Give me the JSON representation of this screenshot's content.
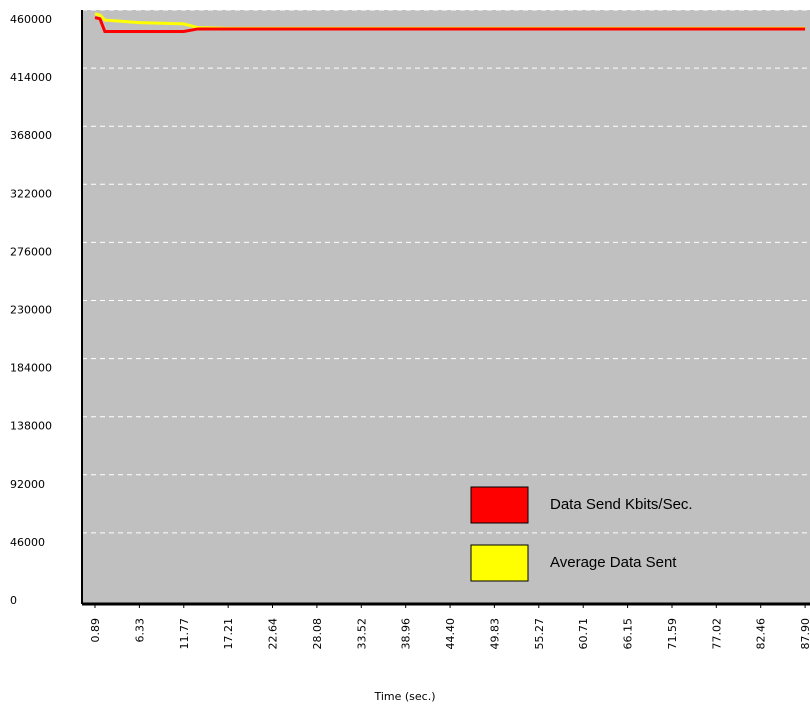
{
  "chart_data": {
    "type": "line",
    "x_label": "Time (sec.)",
    "x": [
      0.89,
      1.5,
      2.1,
      6.33,
      11.77,
      13.5,
      17.21,
      87.9
    ],
    "series": [
      {
        "name": "Data Send Kbits/Sec.",
        "color": "#ff0000",
        "values": [
          454000,
          453000,
          443000,
          443000,
          443000,
          445000,
          445000,
          445000
        ]
      },
      {
        "name": "Average Data Sent",
        "color": "#ffff00",
        "values": [
          457000,
          456000,
          452000,
          450000,
          449000,
          446000,
          445500,
          445500
        ]
      }
    ],
    "xlim": [
      -0.7,
      88.5
    ],
    "xticks": [
      0.89,
      6.33,
      11.77,
      17.21,
      22.64,
      28.08,
      33.52,
      38.96,
      {
        "value": 44.4,
        "label": "44.40"
      },
      49.83,
      55.27,
      60.71,
      66.15,
      71.59,
      77.02,
      82.46,
      {
        "value": 87.9,
        "label": "87.90"
      }
    ],
    "ylim": [
      -10300,
      460000
    ],
    "yticks": [
      0,
      46000,
      92000,
      138000,
      184000,
      230000,
      276000,
      322000,
      368000,
      414000,
      460000
    ],
    "grid": true,
    "legend": "lower right"
  }
}
